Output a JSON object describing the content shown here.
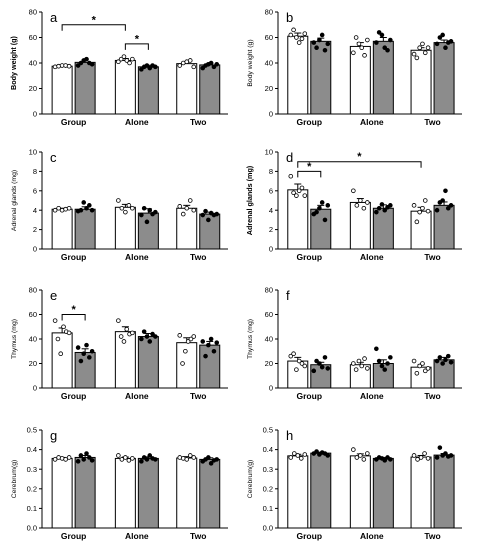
{
  "colors": {
    "open_bar": "#ffffff",
    "filled_bar": "#8c8c8c",
    "axis": "#000000"
  },
  "chart_data": [
    {
      "type": "bar",
      "label": "a",
      "ylabel": "Body weight (g)",
      "ylim": [
        0,
        80
      ],
      "yticks": [
        0,
        20,
        40,
        60,
        80
      ],
      "ylabel_bold": true,
      "categories": [
        "Group",
        "Alone",
        "Two"
      ],
      "series": [
        {
          "values": [
            37.5,
            42,
            39.5
          ],
          "errors": [
            0.8,
            1.5,
            1.5
          ]
        },
        {
          "values": [
            40.5,
            37,
            38.5
          ],
          "errors": [
            2,
            1.2,
            1.2
          ]
        }
      ],
      "points": [
        [
          [
            37,
            37.5,
            38,
            38,
            37.5
          ],
          [
            38,
            40,
            42,
            43,
            40,
            39
          ]
        ],
        [
          [
            41,
            43,
            45,
            42,
            40,
            43
          ],
          [
            35,
            37,
            38,
            36,
            38,
            37
          ]
        ],
        [
          [
            38,
            40,
            41,
            42,
            37
          ],
          [
            36,
            38,
            39,
            40,
            37,
            39
          ]
        ]
      ],
      "significance": [
        {
          "from": [
            0,
            0
          ],
          "to": [
            1,
            0
          ],
          "label": "*",
          "level": 70
        },
        {
          "from": [
            1,
            0
          ],
          "to": [
            1,
            1
          ],
          "label": "*",
          "level": 55
        }
      ]
    },
    {
      "type": "bar",
      "label": "b",
      "ylabel": "Body weight (g)",
      "ylim": [
        0,
        80
      ],
      "yticks": [
        0,
        20,
        40,
        60,
        80
      ],
      "ylabel_bold": false,
      "categories": [
        "Group",
        "Alone",
        "Two"
      ],
      "series": [
        {
          "values": [
            61,
            53,
            50
          ],
          "errors": [
            2.5,
            3,
            2
          ]
        },
        {
          "values": [
            57,
            57,
            56
          ],
          "errors": [
            2.5,
            3,
            2
          ]
        }
      ],
      "points": [
        [
          [
            62,
            66,
            60,
            56,
            59,
            63
          ],
          [
            56,
            52,
            58,
            62,
            50,
            55
          ]
        ],
        [
          [
            48,
            60,
            55,
            52,
            46,
            58
          ],
          [
            56,
            64,
            62,
            52,
            50,
            58
          ]
        ],
        [
          [
            47,
            44,
            52,
            55,
            48,
            52
          ],
          [
            55,
            60,
            62,
            52,
            56,
            57
          ]
        ]
      ],
      "significance": []
    },
    {
      "type": "bar",
      "label": "c",
      "ylabel": "Adrenal glands (mg)",
      "ylim": [
        0,
        10
      ],
      "yticks": [
        0,
        2,
        4,
        6,
        8,
        10
      ],
      "ylabel_bold": false,
      "categories": [
        "Group",
        "Alone",
        "Two"
      ],
      "series": [
        {
          "values": [
            4.1,
            4.3,
            4.2
          ],
          "errors": [
            0.1,
            0.3,
            0.3
          ]
        },
        {
          "values": [
            4.1,
            3.7,
            3.6
          ],
          "errors": [
            0.25,
            0.45,
            0.2
          ]
        }
      ],
      "points": [
        [
          [
            4.0,
            4.2,
            4.0,
            4.1,
            4.2
          ],
          [
            3.9,
            4.0,
            4.8,
            4.2,
            4.5,
            4.0
          ]
        ],
        [
          [
            5.0,
            4.2,
            3.8,
            4.5,
            4.2
          ],
          [
            3.5,
            4.2,
            2.8,
            4.0,
            3.6,
            3.8
          ]
        ],
        [
          [
            4.4,
            3.6,
            4.2,
            5.0,
            4.0
          ],
          [
            3.5,
            3.9,
            3.0,
            3.7,
            3.5,
            3.6
          ]
        ]
      ],
      "significance": []
    },
    {
      "type": "bar",
      "label": "d",
      "ylabel": "Adrenal glands (mg)",
      "ylim": [
        0,
        10
      ],
      "yticks": [
        0,
        2,
        4,
        6,
        8,
        10
      ],
      "ylabel_bold": true,
      "categories": [
        "Group",
        "Alone",
        "Two"
      ],
      "series": [
        {
          "values": [
            6.1,
            4.8,
            3.9
          ],
          "errors": [
            0.6,
            0.4,
            0.4
          ]
        },
        {
          "values": [
            4.1,
            4.2,
            4.5
          ],
          "errors": [
            0.4,
            0.35,
            0.35
          ]
        }
      ],
      "points": [
        [
          [
            7.5,
            5.8,
            5.5,
            6.0,
            6.3,
            5.5
          ],
          [
            3.6,
            3.8,
            4.2,
            4.8,
            3.0,
            4.5
          ]
        ],
        [
          [
            6.0,
            4.5,
            5.0,
            4.2,
            4.8
          ],
          [
            3.8,
            4.2,
            4.6,
            4.0,
            4.3,
            4.5
          ]
        ],
        [
          [
            4.5,
            2.8,
            3.8,
            4.2,
            5.0,
            3.9
          ],
          [
            4.0,
            4.8,
            5.0,
            6.0,
            4.2,
            4.5
          ]
        ]
      ],
      "significance": [
        {
          "from": [
            0,
            0
          ],
          "to": [
            2,
            0
          ],
          "label": "*",
          "level": 9.0
        },
        {
          "from": [
            0,
            0
          ],
          "to": [
            0,
            1
          ],
          "label": "*",
          "level": 8.0
        }
      ]
    },
    {
      "type": "bar",
      "label": "e",
      "ylabel": "Thymus (mg)",
      "ylim": [
        0,
        80
      ],
      "yticks": [
        0,
        20,
        40,
        60,
        80
      ],
      "ylabel_bold": false,
      "categories": [
        "Group",
        "Alone",
        "Two"
      ],
      "series": [
        {
          "values": [
            45,
            46,
            37
          ],
          "errors": [
            4,
            4,
            4
          ]
        },
        {
          "values": [
            29,
            42,
            35
          ],
          "errors": [
            3,
            2.5,
            3
          ]
        }
      ],
      "points": [
        [
          [
            55,
            40,
            28,
            50,
            46,
            45
          ],
          [
            33,
            22,
            28,
            35,
            25,
            30
          ]
        ],
        [
          [
            55,
            42,
            38,
            48,
            44,
            45
          ],
          [
            40,
            46,
            42,
            38,
            44,
            42
          ]
        ],
        [
          [
            43,
            20,
            30,
            38,
            40,
            42
          ],
          [
            38,
            26,
            35,
            40,
            30,
            37
          ]
        ]
      ],
      "significance": [
        {
          "from": [
            0,
            0
          ],
          "to": [
            0,
            1
          ],
          "label": "*",
          "level": 60
        }
      ]
    },
    {
      "type": "bar",
      "label": "f",
      "ylabel": "Thymus (mg)",
      "ylim": [
        0,
        80
      ],
      "yticks": [
        0,
        20,
        40,
        60,
        80
      ],
      "ylabel_bold": false,
      "categories": [
        "Group",
        "Alone",
        "Two"
      ],
      "series": [
        {
          "values": [
            22,
            19,
            17
          ],
          "errors": [
            3,
            2,
            2
          ]
        },
        {
          "values": [
            19,
            20,
            23
          ],
          "errors": [
            2,
            3,
            2
          ]
        }
      ],
      "points": [
        [
          [
            26,
            28,
            15,
            22,
            20,
            18
          ],
          [
            14,
            22,
            20,
            17,
            25,
            16
          ]
        ],
        [
          [
            20,
            15,
            22,
            18,
            24,
            16
          ],
          [
            32,
            22,
            18,
            15,
            20,
            25
          ]
        ],
        [
          [
            22,
            12,
            18,
            20,
            14,
            16
          ],
          [
            22,
            25,
            20,
            23,
            26,
            21
          ]
        ]
      ],
      "significance": []
    },
    {
      "type": "bar",
      "label": "g",
      "ylabel": "Cerebrum(g)",
      "ylim": [
        0,
        0.5
      ],
      "yticks": [
        0.0,
        0.1,
        0.2,
        0.3,
        0.4,
        0.5
      ],
      "ylabel_bold": false,
      "categories": [
        "Group",
        "Alone",
        "Two"
      ],
      "series": [
        {
          "values": [
            0.355,
            0.355,
            0.357
          ],
          "errors": [
            0.005,
            0.007,
            0.007
          ]
        },
        {
          "values": [
            0.36,
            0.355,
            0.35
          ],
          "errors": [
            0.01,
            0.008,
            0.008
          ]
        }
      ],
      "points": [
        [
          [
            0.35,
            0.36,
            0.355,
            0.35,
            0.36
          ],
          [
            0.34,
            0.37,
            0.35,
            0.38,
            0.36,
            0.345
          ]
        ],
        [
          [
            0.37,
            0.35,
            0.36,
            0.345,
            0.355
          ],
          [
            0.34,
            0.36,
            0.35,
            0.37,
            0.355,
            0.35
          ]
        ],
        [
          [
            0.36,
            0.355,
            0.35,
            0.37,
            0.36
          ],
          [
            0.34,
            0.35,
            0.36,
            0.33,
            0.345,
            0.35
          ]
        ]
      ],
      "significance": []
    },
    {
      "type": "bar",
      "label": "h",
      "ylabel": "Cerebrum(g)",
      "ylim": [
        0,
        0.5
      ],
      "yticks": [
        0.0,
        0.1,
        0.2,
        0.3,
        0.4,
        0.5
      ],
      "ylabel_bold": false,
      "categories": [
        "Group",
        "Alone",
        "Two"
      ],
      "series": [
        {
          "values": [
            0.368,
            0.368,
            0.362
          ],
          "errors": [
            0.008,
            0.01,
            0.008
          ]
        },
        {
          "values": [
            0.382,
            0.355,
            0.372
          ],
          "errors": [
            0.005,
            0.005,
            0.008
          ]
        }
      ],
      "points": [
        [
          [
            0.36,
            0.38,
            0.37,
            0.355,
            0.375
          ],
          [
            0.38,
            0.39,
            0.375,
            0.385,
            0.38,
            0.37
          ]
        ],
        [
          [
            0.4,
            0.36,
            0.37,
            0.35,
            0.38
          ],
          [
            0.35,
            0.36,
            0.355,
            0.345,
            0.36,
            0.35
          ]
        ],
        [
          [
            0.37,
            0.35,
            0.36,
            0.38,
            0.355
          ],
          [
            0.36,
            0.41,
            0.37,
            0.38,
            0.365,
            0.37
          ]
        ]
      ],
      "significance": []
    }
  ]
}
